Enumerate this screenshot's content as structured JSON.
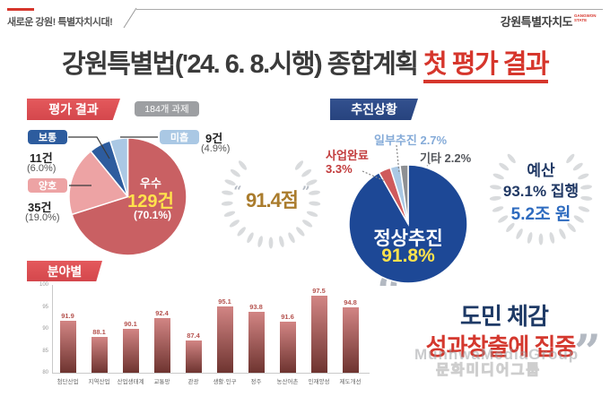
{
  "topbar": {
    "slogan": "새로운 강원! 특별자치시대!",
    "logo": "강원특별자치도",
    "logo_sub": "GANGWON STATE"
  },
  "title": {
    "main": "강원특별법('24. 6. 8.시행) 종합계획 ",
    "highlight": "첫 평가 결과"
  },
  "decorations": {
    "open_quote": "“",
    "close_quote": "”"
  },
  "colors": {
    "accent_red": "#d6362c",
    "navy": "#203864",
    "blue": "#2e6bbf",
    "yellow": "#ffe24c",
    "gold": "#aa7c2d"
  },
  "budget": {
    "title": "예산",
    "executed": "93.1% 집행",
    "amount": "5.2조 원"
  },
  "quote": {
    "line1": "도민 체감",
    "line2": "성과창출에 집중"
  },
  "watermark": {
    "en": "MunhwaMediaGroup",
    "ko": "문화미디어그룹"
  },
  "chart_data": [
    {
      "type": "pie",
      "name": "evaluation-results",
      "title": "평가 결과",
      "subtitle": "184개 과제",
      "score": "91.4점",
      "legend_position": "callouts",
      "slices": [
        {
          "label": "우수",
          "count": 129,
          "count_label": "129건",
          "pct": 70.1,
          "pct_label": "(70.1%)",
          "color": "#c96063"
        },
        {
          "label": "양호",
          "count": 35,
          "count_label": "35건",
          "pct": 19.0,
          "pct_label": "(19.0%)",
          "color": "#eda3a4"
        },
        {
          "label": "보통",
          "count": 11,
          "count_label": "11건",
          "pct": 6.0,
          "pct_label": "(6.0%)",
          "color": "#2d5c9e"
        },
        {
          "label": "미흡",
          "count": 9,
          "count_label": "9건",
          "pct": 4.9,
          "pct_label": "(4.9%)",
          "color": "#aac8e4"
        }
      ]
    },
    {
      "type": "pie",
      "name": "progress-status",
      "title": "추진상황",
      "legend_position": "callouts",
      "slices": [
        {
          "label": "정상추진",
          "pct": 91.8,
          "pct_label": "91.8%",
          "color": "#1d4896"
        },
        {
          "label": "사업완료",
          "pct": 3.3,
          "pct_label": "3.3%",
          "color": "#cf5a5c"
        },
        {
          "label": "일부추진",
          "pct": 2.7,
          "pct_label": "2.7%",
          "color": "#aac8e4"
        },
        {
          "label": "기타",
          "pct": 2.2,
          "pct_label": "2.2%",
          "color": "#8d8f93"
        }
      ]
    },
    {
      "type": "bar",
      "name": "by-field-scores",
      "title": "분야별",
      "categories": [
        "첨단산업",
        "지역산업",
        "산업생태계",
        "교통망",
        "관광",
        "생활·인구",
        "정주",
        "농산어촌",
        "인재양성",
        "제도개선"
      ],
      "values": [
        91.9,
        88.1,
        90.1,
        92.4,
        87.4,
        95.1,
        93.8,
        91.6,
        97.5,
        94.8
      ],
      "ylim": [
        80,
        100
      ],
      "yticks": [
        80,
        85,
        90,
        95,
        100
      ],
      "grid": false,
      "bar_color_top": "#d28584",
      "bar_color_bottom": "#6e3430",
      "value_label_color": "#b5534f"
    }
  ]
}
